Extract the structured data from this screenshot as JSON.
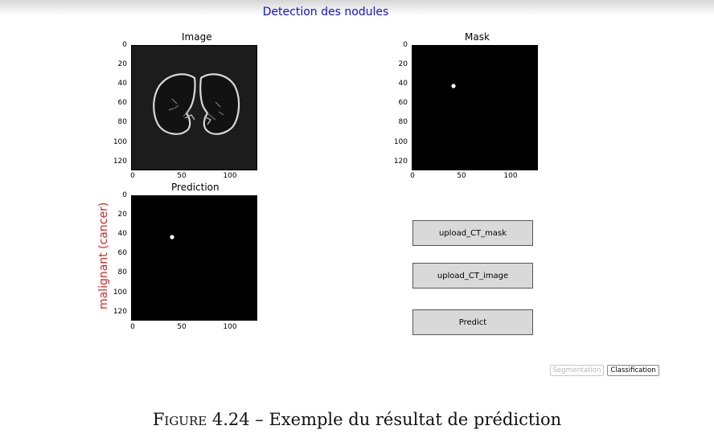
{
  "app": {
    "title": "Detection des nodules"
  },
  "plots": {
    "image": {
      "title": "Image"
    },
    "mask": {
      "title": "Mask"
    },
    "prediction": {
      "title": "Prediction"
    },
    "y_ticks": [
      "0",
      "20",
      "40",
      "60",
      "80",
      "100",
      "120"
    ],
    "x_ticks": [
      "0",
      "50",
      "100"
    ]
  },
  "result_label": "malignant (cancer)",
  "buttons": {
    "upload_mask": "upload_CT_mask",
    "upload_image": "upload_CT_image",
    "predict": "Predict"
  },
  "tabs": {
    "segmentation": "Segmentation",
    "classification": "Classification"
  },
  "caption": {
    "label": "Figure 4.24",
    "text": " – Exemple du résultat de prédiction"
  },
  "colors": {
    "title": "#1010e0",
    "result_label": "#e02020",
    "button_bg": "#d9d9d9"
  }
}
